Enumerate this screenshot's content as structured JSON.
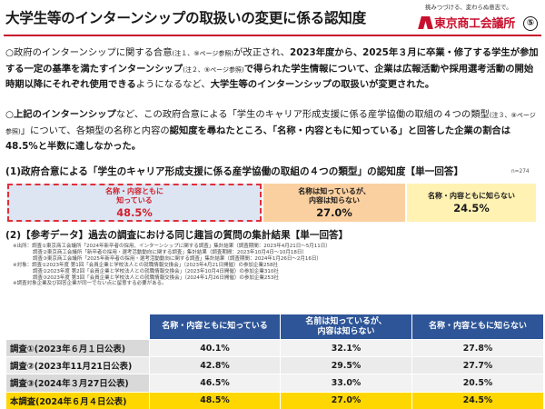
{
  "header": {
    "title": "大学生等のインターンシップの取扱いの変更に係る認知度",
    "tagline": "挑みつづける、変わらぬ意志で。",
    "org_name": "東京商工会議所",
    "page_number": "⑤",
    "accent_color": "#c8102e"
  },
  "intro": {
    "p1": {
      "s1": "○政府のインターンシップに関する合意",
      "n1": "(注１、⑨ページ参照)",
      "s2": "が改正され、",
      "b1": "2023年度から、2025年３月に卒業・修了する学生が参加する一定の基準を満たすインターンシップ",
      "n2": "(注２、⑨ページ参照)",
      "b2": "で得られた学生情報について、企業は広報活動や採用選考活動の開始時期以降にそれぞれ使用できる",
      "s3": "ようになるなど、",
      "b3": "大学生等のインターンシップの取扱いが変更された。"
    },
    "p2": {
      "s1": "○",
      "b1": "上記のインターンシップ",
      "s2": "など、この政府合意による「学生のキャリア形成支援に係る産学協働の取組の４つの類型",
      "n1": "(注３、⑨ページ参照)",
      "s3": "」について、各類型の名称と内容の",
      "b2": "認知度を尋ねたところ、「名称・内容ともに知っている」と回答した企業の割合は48.5%と半数に達しなかった。"
    }
  },
  "section1": {
    "heading": "(1)政府合意による「学生のキャリア形成支援に係る産学協働の取組の４つの類型」の認知度【単一回答】",
    "n_label": "n=274"
  },
  "chart_data": {
    "type": "bar",
    "title": "(1)政府合意による「学生のキャリア形成支援に係る産学協働の取組の４つの類型」の認知度【単一回答】",
    "categories": [
      "名称・内容ともに知っている",
      "名称は知っているが、内容は知らない",
      "名称・内容ともに知らない"
    ],
    "values": [
      48.5,
      27.0,
      24.5
    ],
    "value_labels": [
      "48.5%",
      "27.0%",
      "24.5%"
    ],
    "stacked": true,
    "orientation": "horizontal",
    "n": "n=274",
    "colors": [
      "#dde5f3",
      "#fbd0a0",
      "#fff2b3"
    ],
    "highlight_color": "#d21f2b",
    "bar_label_lines": [
      [
        "名称・内容ともに",
        "知っている"
      ],
      [
        "名称は知っているが、",
        "内容は知らない"
      ],
      [
        "名称・内容ともに知らない"
      ]
    ]
  },
  "section2": {
    "heading": "(2)【参考データ】過去の調査における同じ趣旨の質問の集計結果【単一回答】",
    "notes": [
      "※出所：調査①東京商工会議所「2024年新卒者の採用、インターンシップに関する調査」集計結果（調査期間：2023年4月21日～5月11日）",
      "　　　　調査②東京商工会議所「新卒者の採用・選考活動動向に関する調査」集計結果（調査期間：2023年10月4日～10月18日）",
      "　　　　調査③東京商工会議所「2025年新卒者の採用・選考活動動向に関する調査」集計結果（調査期間：2024年1月26日～2月16日）",
      "※対象：調査①2023年度 第1回「会員企業と学校法人との就職情報交換会」（2023年4月21日開催）の参加企業258社",
      "　　　　調査②2023年度 第2回「会員企業と学校法人との就職情報交換会」（2023年10月4日開催）の参加企業310社",
      "　　　　調査③2023年度 第3回「会員企業と学校法人との就職情報交換会」（2024年1月26日開催）の参加企業253社",
      "※調査対象企業及び回答企業が同一でない点に留意する必要がある。"
    ]
  },
  "table": {
    "columns": [
      "名称・内容ともに知っている",
      "名前は知っているが、内容は知らない",
      "名称・内容ともに知らない"
    ],
    "rows": [
      {
        "label": "調査①(2023年６月１日公表)",
        "values": [
          "40.1%",
          "32.1%",
          "27.8%"
        ]
      },
      {
        "label": "調査②(2023年11月21日公表)",
        "values": [
          "42.8%",
          "29.5%",
          "27.7%"
        ]
      },
      {
        "label": "調査③(2024年３月27日公表)",
        "values": [
          "46.5%",
          "33.0%",
          "20.5%"
        ]
      },
      {
        "label": "本調査(2024年６月４日公表)",
        "values": [
          "48.5%",
          "27.0%",
          "24.5%"
        ]
      }
    ],
    "header_color": "#2e5597",
    "highlight_row_color": "#ffd700"
  }
}
